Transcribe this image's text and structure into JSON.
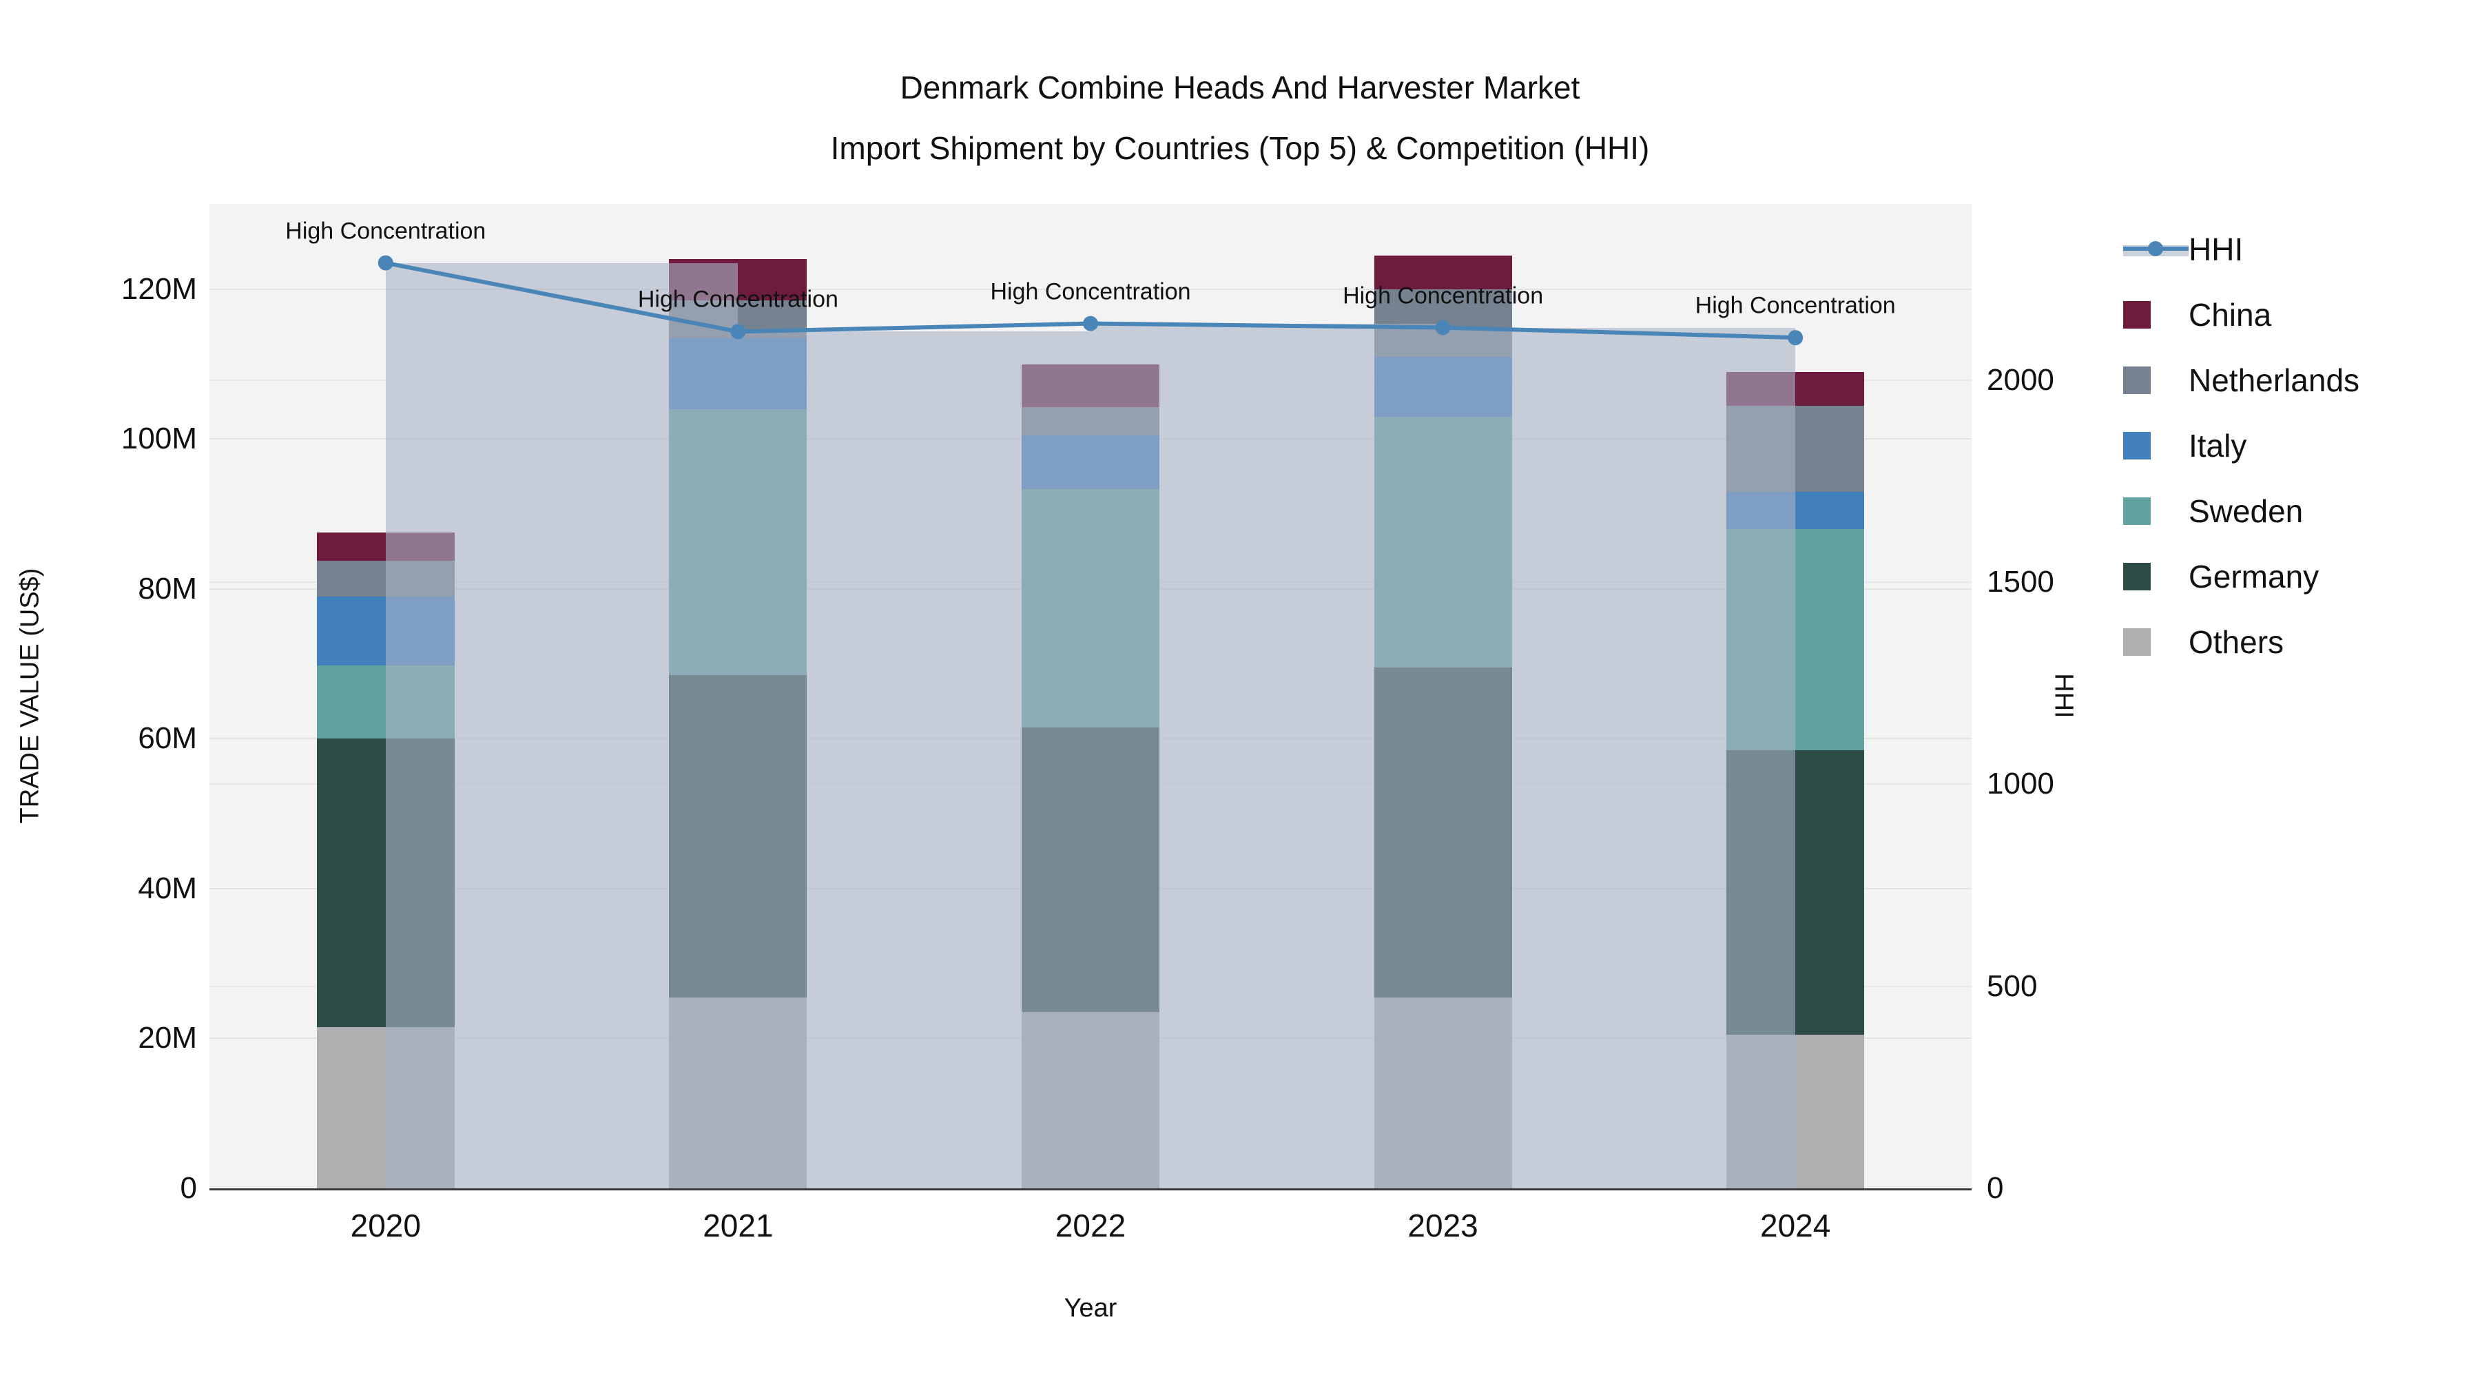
{
  "title": {
    "line1": "Denmark Combine Heads And Harvester Market",
    "line2": "Import Shipment by Countries (Top 5) & Competition (HHI)"
  },
  "axes": {
    "x": {
      "title": "Year"
    },
    "left": {
      "title": "TRADE VALUE (US$)",
      "tick_labels": [
        "0",
        "20M",
        "40M",
        "60M",
        "80M",
        "100M",
        "120M"
      ],
      "tick_values": [
        0,
        20,
        40,
        60,
        80,
        100,
        120
      ],
      "max": 131.4
    },
    "right": {
      "title": "HHI",
      "tick_labels": [
        "0",
        "500",
        "1000",
        "1500",
        "2000"
      ],
      "tick_values": [
        0,
        500,
        1000,
        1500,
        2000
      ],
      "max": 2436
    }
  },
  "chart_data": {
    "type": "combo-stacked-bar-line",
    "categories": [
      "2020",
      "2021",
      "2022",
      "2023",
      "2024"
    ],
    "bar_value_unit": "M US$",
    "series": [
      {
        "name": "Others",
        "color": "#adafb1",
        "values": [
          21.5,
          25.5,
          23.5,
          25.5,
          20.5
        ]
      },
      {
        "name": "Germany",
        "color": "#2f4b46",
        "values": [
          38.5,
          43.0,
          38.0,
          44.0,
          38.0
        ]
      },
      {
        "name": "Sweden",
        "color": "#61a3a1",
        "values": [
          9.8,
          35.5,
          31.8,
          33.5,
          29.5
        ]
      },
      {
        "name": "Italy",
        "color": "#4280bd",
        "values": [
          9.2,
          9.5,
          7.2,
          8.0,
          5.0
        ]
      },
      {
        "name": "Netherlands",
        "color": "#76828f",
        "values": [
          4.8,
          5.0,
          3.8,
          9.0,
          11.5
        ]
      },
      {
        "name": "China",
        "color": "#6e1c3d",
        "values": [
          3.7,
          5.5,
          5.7,
          4.5,
          4.5
        ]
      }
    ],
    "bar_totals": [
      87.5,
      124.0,
      110.0,
      124.5,
      109.0
    ],
    "line": {
      "name": "HHI",
      "axis": "right",
      "color": "#4a85b8",
      "band_color": "rgba(168,178,198,0.6)",
      "values": [
        2290,
        2120,
        2140,
        2130,
        2105
      ]
    },
    "annotations": [
      "High Concentration",
      "High Concentration",
      "High Concentration",
      "High Concentration",
      "High Concentration"
    ],
    "legend_order": [
      "HHI",
      "China",
      "Netherlands",
      "Italy",
      "Sweden",
      "Germany",
      "Others"
    ],
    "legend_position": "right",
    "grid": "on",
    "plot_bg": "#f2f3f2"
  }
}
